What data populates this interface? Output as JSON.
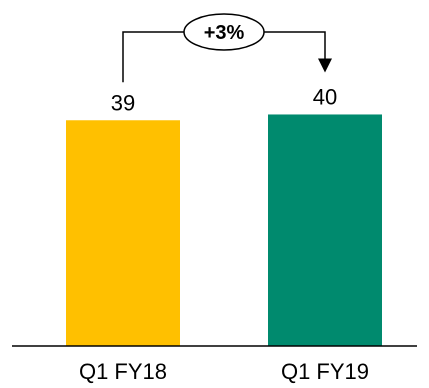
{
  "chart_data": {
    "type": "bar",
    "categories": [
      "Q1 FY18",
      "Q1 FY19"
    ],
    "values": [
      39,
      40
    ],
    "data_labels": [
      "39",
      "40"
    ],
    "colors": [
      "#FFC000",
      "#008A6E"
    ],
    "ylim": [
      0,
      42.5
    ],
    "grid": false,
    "legend": "none",
    "annotation": {
      "text": "+3%",
      "from": "Q1 FY18",
      "to": "Q1 FY19"
    }
  }
}
